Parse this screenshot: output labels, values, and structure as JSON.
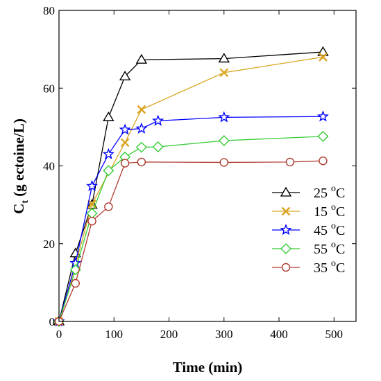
{
  "chart_data": {
    "type": "line",
    "xlabel": "Time (min)",
    "ylabel": {
      "main": "C",
      "sub": "t",
      "rest": " (g ectoine/L)"
    },
    "xlim": [
      0,
      540
    ],
    "ylim": [
      0,
      80
    ],
    "xticks": [
      0,
      100,
      200,
      300,
      400,
      500
    ],
    "yticks": [
      0,
      20,
      40,
      60,
      80
    ],
    "grid": false,
    "legend_position": "right-center",
    "series": [
      {
        "name": "25 °C",
        "label_value": "25 ",
        "label_sup": "o",
        "label_unit": "C",
        "color": "#000000",
        "marker": "triangle",
        "x": [
          0,
          30,
          60,
          90,
          120,
          150,
          300,
          480
        ],
        "y": [
          0,
          17.5,
          30,
          52.5,
          63,
          67.3,
          67.6,
          69.3
        ]
      },
      {
        "name": "15 °C",
        "label_value": "15 ",
        "label_sup": "o",
        "label_unit": "C",
        "color": "#DAA520",
        "marker": "x",
        "x": [
          0,
          30,
          60,
          120,
          150,
          300,
          480
        ],
        "y": [
          0,
          14.5,
          30.2,
          46,
          54.5,
          64,
          68
        ]
      },
      {
        "name": "45 °C",
        "label_value": "45 ",
        "label_sup": "o",
        "label_unit": "C",
        "color": "#0000FF",
        "marker": "star",
        "x": [
          0,
          30,
          60,
          90,
          120,
          150,
          180,
          300,
          480
        ],
        "y": [
          0,
          15,
          34.8,
          43,
          49.3,
          49.6,
          51.6,
          52.5,
          52.7
        ]
      },
      {
        "name": "55 °C",
        "label_value": "55 ",
        "label_sup": "o",
        "label_unit": "C",
        "color": "#33CC33",
        "marker": "diamond",
        "x": [
          0,
          30,
          60,
          90,
          120,
          150,
          180,
          300,
          480
        ],
        "y": [
          0,
          13.3,
          27.8,
          38.8,
          42.3,
          44.8,
          44.9,
          46.5,
          47.6
        ]
      },
      {
        "name": "35 °C",
        "label_value": "35 ",
        "label_sup": "o",
        "label_unit": "C",
        "color": "#B03A2E",
        "marker": "circle",
        "x": [
          0,
          30,
          60,
          90,
          120,
          150,
          300,
          420,
          480
        ],
        "y": [
          0,
          9.8,
          25.8,
          29.5,
          40.7,
          41,
          40.9,
          41,
          41.3
        ]
      }
    ]
  }
}
